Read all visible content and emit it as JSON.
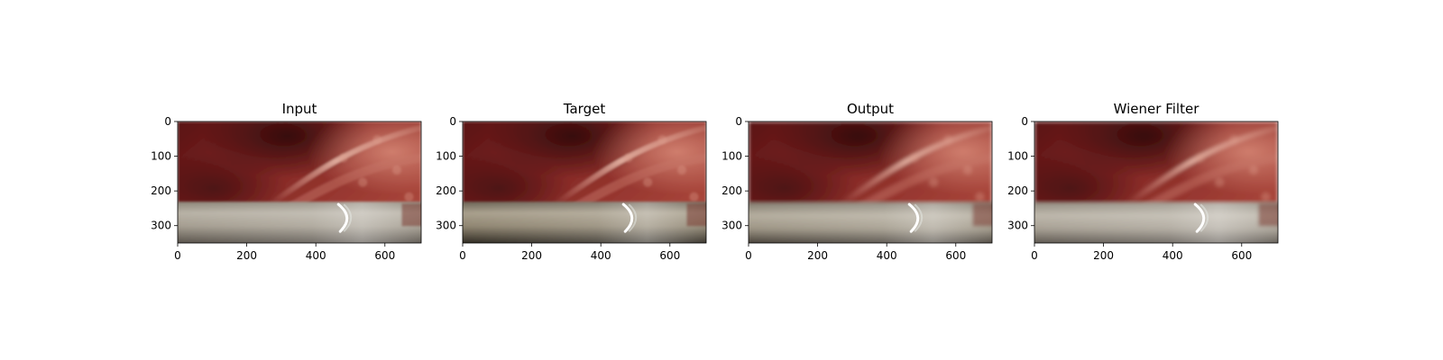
{
  "chart_data": [
    {
      "type": "image",
      "title": "Input",
      "xlim": [
        0,
        705
      ],
      "ylim": [
        350,
        0
      ],
      "x_ticks": [
        0,
        200,
        400,
        600
      ],
      "y_ticks": [
        0,
        100,
        200,
        300
      ],
      "variant": "input"
    },
    {
      "type": "image",
      "title": "Target",
      "xlim": [
        0,
        705
      ],
      "ylim": [
        350,
        0
      ],
      "x_ticks": [
        0,
        200,
        400,
        600
      ],
      "y_ticks": [
        0,
        100,
        200,
        300
      ],
      "variant": "target"
    },
    {
      "type": "image",
      "title": "Output",
      "xlim": [
        0,
        705
      ],
      "ylim": [
        350,
        0
      ],
      "x_ticks": [
        0,
        200,
        400,
        600
      ],
      "y_ticks": [
        0,
        100,
        200,
        300
      ],
      "variant": "output"
    },
    {
      "type": "image",
      "title": "Wiener Filter",
      "xlim": [
        0,
        705
      ],
      "ylim": [
        350,
        0
      ],
      "x_ticks": [
        0,
        200,
        400,
        600
      ],
      "y_ticks": [
        0,
        100,
        200,
        300
      ],
      "variant": "wiener"
    }
  ]
}
